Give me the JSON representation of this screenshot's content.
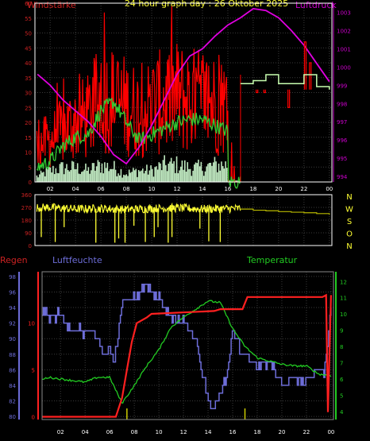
{
  "header": {
    "left_title": "Windstärke",
    "center_title": "24 hour graph day : 26 Oktober 2025",
    "right_title": "Luftdruck"
  },
  "colors": {
    "background": "#000000",
    "grid": "#3a3a3a",
    "axis_white": "#ffffff",
    "wind_red": "#ff0000",
    "wind_avg_green": "#33cc33",
    "gust_mint": "#bfe8c0",
    "pressure_magenta": "#e000e0",
    "direction_yellow": "#ffff33",
    "rain_red": "#ff2020",
    "humidity_blue": "#6d6dd8",
    "temperature_green": "#22cc22",
    "left_axis_red": "#cc2222",
    "pressure_axis_magenta": "#cc00cc"
  },
  "x_tick_labels": [
    "02",
    "04",
    "06",
    "08",
    "10",
    "12",
    "14",
    "16",
    "18",
    "20",
    "22",
    "00"
  ],
  "chart_data": [
    {
      "id": "wind_pressure",
      "type": "line",
      "title": "",
      "left_axis": {
        "label": "Windstärke",
        "ticks": [
          0,
          5,
          10,
          15,
          20,
          25,
          30,
          35,
          40,
          45,
          50,
          55,
          60
        ],
        "range": [
          0,
          60
        ]
      },
      "right_axis": {
        "label": "Luftdruck",
        "ticks": [
          994,
          995,
          996,
          997,
          998,
          999,
          1000,
          1001,
          1002,
          1003
        ],
        "range": [
          993.7,
          1003.5
        ]
      },
      "x": [
        "00",
        "01",
        "02",
        "03",
        "04",
        "05",
        "06",
        "07",
        "08",
        "09",
        "10",
        "11",
        "12",
        "13",
        "14",
        "15",
        "16",
        "17",
        "18",
        "19",
        "20",
        "21",
        "22",
        "23",
        "24"
      ],
      "series": [
        {
          "values": [
            10,
            16,
            18,
            22,
            26,
            28,
            37,
            35,
            33,
            30,
            33,
            35,
            37,
            35,
            36,
            34,
            32,
            null,
            null,
            null,
            null,
            null,
            null,
            null,
            null
          ]
        },
        {
          "values": [
            3,
            5,
            7,
            12,
            15,
            16,
            24,
            27,
            20,
            14,
            16,
            18,
            20,
            21,
            21,
            19,
            17,
            null,
            null,
            null,
            null,
            null,
            null,
            null,
            null
          ]
        },
        {
          "values": [
            999.8,
            999.6,
            999.0,
            998.2,
            997.6,
            997.0,
            996.2,
            995.2,
            994.7,
            995.6,
            996.8,
            998.2,
            999.6,
            1000.6,
            1001.0,
            1001.7,
            1002.3,
            1002.7,
            1003.2,
            1003.1,
            1002.7,
            1002.0,
            1001.2,
            1000.2,
            999.2
          ]
        },
        {
          "values": [
            1,
            2,
            4,
            5,
            5,
            4,
            6,
            5,
            3,
            4,
            4,
            6,
            6,
            5,
            5,
            6,
            6,
            null,
            null,
            null,
            null,
            null,
            null,
            null,
            null
          ]
        },
        {
          "values": [
            null,
            null,
            null,
            null,
            null,
            null,
            null,
            null,
            null,
            null,
            null,
            null,
            null,
            null,
            null,
            null,
            null,
            33,
            34,
            36,
            33,
            33,
            36,
            32,
            31
          ]
        }
      ],
      "gust_spikes": [
        {
          "x": 18.3,
          "value": 30
        },
        {
          "x": 18.9,
          "value": 30
        },
        {
          "x": 20.8,
          "value": 25
        },
        {
          "x": 22.1,
          "value": 47
        },
        {
          "x": 22.5,
          "value": 40
        }
      ]
    },
    {
      "id": "wind_direction",
      "type": "line",
      "title": "",
      "left_axis": {
        "ticks": [
          0,
          90,
          180,
          270,
          360
        ],
        "range": [
          0,
          360
        ]
      },
      "right_labels": [
        "N",
        "W",
        "S",
        "O",
        "N"
      ],
      "series": [
        {
          "x": [
            0,
            2,
            4,
            6,
            8,
            10,
            12,
            14,
            16,
            17
          ],
          "values": [
            265,
            270,
            258,
            262,
            255,
            262,
            266,
            258,
            262,
            262
          ]
        },
        {
          "x": [
            17,
            18,
            19,
            20,
            21,
            22,
            23,
            24
          ],
          "values": [
            258,
            250,
            246,
            240,
            236,
            232,
            226,
            218
          ]
        }
      ],
      "dips": [
        {
          "x": 1.3,
          "value": 60
        },
        {
          "x": 2.4,
          "value": 25
        },
        {
          "x": 3.1,
          "value": 130
        },
        {
          "x": 5.6,
          "value": 20
        },
        {
          "x": 7.1,
          "value": 20
        },
        {
          "x": 7.4,
          "value": 50
        },
        {
          "x": 7.9,
          "value": 20
        },
        {
          "x": 8.6,
          "value": 140
        },
        {
          "x": 9.5,
          "value": 25
        },
        {
          "x": 10.2,
          "value": 60
        },
        {
          "x": 10.5,
          "value": 130
        },
        {
          "x": 11.3,
          "value": 20
        },
        {
          "x": 11.6,
          "value": 60
        },
        {
          "x": 13.8,
          "value": 120
        },
        {
          "x": 14.5,
          "value": 30
        },
        {
          "x": 15.4,
          "value": 25
        }
      ]
    },
    {
      "id": "rain_humidity_temperature",
      "type": "line",
      "title": "",
      "legend": {
        "rain": "Regen",
        "humidity": "Luftfeuchte",
        "temperature": "Temperatur"
      },
      "left_axis_humidity": {
        "ticks": [
          80,
          82,
          84,
          86,
          88,
          90,
          92,
          94,
          96,
          98
        ],
        "range": [
          79.6,
          98.6
        ]
      },
      "left_axis_rain": {
        "ticks": [
          0,
          5,
          10
        ],
        "range": [
          -0.3,
          15.5
        ]
      },
      "right_axis_temperature": {
        "ticks": [
          4,
          5,
          6,
          7,
          8,
          9,
          10,
          11,
          12
        ],
        "range": [
          3.5,
          12.6
        ]
      },
      "rain": {
        "x": [
          0,
          6.5,
          7.0,
          7.4,
          7.8,
          8.2,
          9.0,
          9.4,
          14.5,
          15,
          16.8,
          17.2,
          23.3,
          23.6,
          23.75,
          24
        ],
        "values": [
          0.0,
          0.0,
          2.0,
          5.0,
          8.0,
          10.0,
          10.6,
          11.0,
          11.3,
          11.5,
          11.5,
          12.8,
          12.8,
          13.0,
          0.5,
          13.0
        ]
      },
      "humidity": {
        "x": [
          0,
          1,
          2,
          2.5,
          3,
          4,
          5,
          5.5,
          6,
          6.3,
          6.6,
          7,
          8,
          9,
          10,
          11,
          12,
          13,
          13.5,
          14,
          14.5,
          15,
          15.5,
          16,
          16.5,
          17,
          18,
          19,
          20,
          21,
          22,
          22.5,
          23,
          23.5,
          24
        ],
        "values": [
          94,
          93,
          93,
          92,
          91,
          91,
          90,
          88,
          89,
          86,
          90,
          95,
          95,
          97,
          95,
          93,
          92,
          90,
          86,
          82,
          81,
          83,
          85,
          91,
          89,
          88,
          86,
          87,
          84,
          85,
          84,
          86,
          86,
          86,
          94
        ]
      },
      "temperature": {
        "x": [
          0,
          1,
          2,
          3,
          4,
          5,
          6,
          7,
          8,
          9,
          10,
          11,
          12,
          13,
          14,
          15,
          16,
          17,
          18,
          19,
          20,
          21,
          22,
          23,
          24
        ],
        "values": [
          5.8,
          6.1,
          6.0,
          5.9,
          5.8,
          6.1,
          6.1,
          4.5,
          5.6,
          6.8,
          7.8,
          9.2,
          9.8,
          10.3,
          10.8,
          10.7,
          9.1,
          8.0,
          7.3,
          7.1,
          6.9,
          6.8,
          6.8,
          6.3,
          6.2
        ]
      },
      "bars": [
        {
          "x": 7.4,
          "value": 1
        },
        {
          "x": 17.0,
          "value": 1
        }
      ]
    }
  ]
}
